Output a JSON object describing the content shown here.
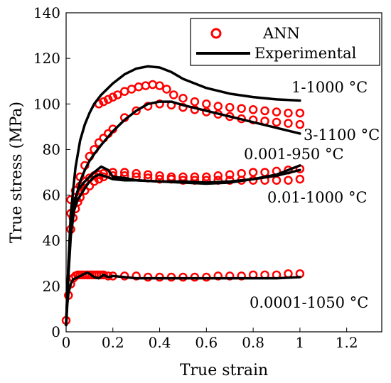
{
  "chart_data": {
    "type": "line",
    "xlabel": "True strain",
    "ylabel": "True stress (MPa)",
    "xlim": [
      0,
      1.35
    ],
    "ylim": [
      0,
      140
    ],
    "xticks": [
      0,
      0.2,
      0.4,
      0.6,
      0.8,
      1,
      1.2
    ],
    "xtick_labels": [
      "0",
      "0.2",
      "0.4",
      "0.6",
      "0.8",
      "1",
      "1.2"
    ],
    "yticks": [
      0,
      20,
      40,
      60,
      80,
      100,
      120,
      140
    ],
    "ytick_labels": [
      "0",
      "20",
      "40",
      "60",
      "80",
      "100",
      "120",
      "140"
    ],
    "legend": {
      "placement": "top-right",
      "entries": [
        {
          "label": "ANN",
          "style": "red-circle-marker"
        },
        {
          "label": "Experimental",
          "style": "black-line"
        }
      ]
    },
    "colors": {
      "ann": "#ff0000",
      "experimental": "#000000"
    },
    "series": [
      {
        "label": "1-1000 °C",
        "experimental": {
          "x": [
            0,
            0.01,
            0.02,
            0.04,
            0.06,
            0.08,
            0.1,
            0.12,
            0.15,
            0.2,
            0.25,
            0.3,
            0.35,
            0.4,
            0.45,
            0.5,
            0.6,
            0.7,
            0.8,
            0.9,
            1.0
          ],
          "y": [
            3,
            30,
            52,
            72,
            84,
            91,
            96,
            100,
            104,
            109,
            113,
            115.5,
            116.5,
            116,
            114,
            111,
            107,
            104.5,
            103,
            102,
            101.5
          ]
        },
        "ann": {
          "x": [
            0.14,
            0.16,
            0.18,
            0.2,
            0.22,
            0.25,
            0.28,
            0.31,
            0.34,
            0.37,
            0.4,
            0.43,
            0.46,
            0.5,
            0.55,
            0.6,
            0.65,
            0.7,
            0.75,
            0.8,
            0.85,
            0.9,
            0.95,
            1.0
          ],
          "y": [
            100,
            101,
            102,
            103,
            104,
            105.5,
            106.5,
            107.5,
            108,
            108.5,
            108,
            106.5,
            104,
            102.5,
            101,
            100,
            99,
            98.5,
            98,
            97.5,
            97,
            96.5,
            96,
            96
          ]
        }
      },
      {
        "label": "3-1100 °C",
        "experimental": {
          "x": [
            0,
            0.01,
            0.02,
            0.04,
            0.06,
            0.08,
            0.1,
            0.12,
            0.15,
            0.2,
            0.25,
            0.3,
            0.35,
            0.4,
            0.45,
            0.5,
            0.6,
            0.7,
            0.8,
            0.9,
            1.0
          ],
          "y": [
            3,
            25,
            42,
            58,
            66,
            71,
            75,
            78,
            82,
            88,
            93,
            97,
            100,
            101,
            101,
            99.5,
            97,
            94.5,
            92,
            89.5,
            87
          ]
        },
        "ann": {
          "x": [
            0.02,
            0.04,
            0.06,
            0.08,
            0.1,
            0.12,
            0.14,
            0.16,
            0.18,
            0.2,
            0.25,
            0.3,
            0.35,
            0.4,
            0.45,
            0.5,
            0.55,
            0.6,
            0.65,
            0.7,
            0.75,
            0.8,
            0.85,
            0.9,
            0.95,
            1.0
          ],
          "y": [
            52,
            62,
            68,
            73,
            77,
            80,
            83,
            85,
            87,
            89,
            94,
            97,
            99,
            100,
            99.5,
            98.5,
            97.5,
            96.5,
            95.5,
            94.5,
            93.5,
            93,
            92.5,
            92,
            91.5,
            91
          ]
        }
      },
      {
        "label": "0.001-950 °C",
        "experimental": {
          "x": [
            0,
            0.01,
            0.02,
            0.03,
            0.05,
            0.08,
            0.1,
            0.12,
            0.15,
            0.18,
            0.2,
            0.25,
            0.3,
            0.4,
            0.5,
            0.6,
            0.7,
            0.8,
            0.9,
            0.95,
            1.0
          ],
          "y": [
            3,
            30,
            48,
            56,
            62,
            66,
            68,
            70,
            72.5,
            71,
            68,
            67.5,
            66.5,
            66,
            65.5,
            65,
            65.5,
            67,
            69,
            71,
            73
          ]
        },
        "ann": {
          "x": [
            0.02,
            0.04,
            0.06,
            0.08,
            0.1,
            0.12,
            0.14,
            0.16,
            0.2,
            0.25,
            0.3,
            0.35,
            0.4,
            0.45,
            0.5,
            0.55,
            0.6,
            0.65,
            0.7,
            0.75,
            0.8,
            0.85,
            0.9,
            0.95,
            1.0
          ],
          "y": [
            58,
            62,
            64,
            66,
            67.5,
            68.5,
            69,
            69.5,
            70,
            70,
            69.5,
            69,
            68.5,
            68,
            68,
            68,
            68,
            68.5,
            69,
            69.5,
            70,
            70,
            70.5,
            71,
            71.5
          ]
        }
      },
      {
        "label": "0.01-1000 °C",
        "experimental": {
          "x": [
            0,
            0.01,
            0.02,
            0.03,
            0.05,
            0.08,
            0.1,
            0.12,
            0.14,
            0.16,
            0.2,
            0.25,
            0.3,
            0.4,
            0.5,
            0.6,
            0.7,
            0.8,
            0.9,
            1.0
          ],
          "y": [
            3,
            28,
            45,
            52,
            58,
            63,
            66,
            68,
            69,
            68.5,
            67,
            66.5,
            66.5,
            66,
            66,
            65.5,
            66,
            67,
            68.5,
            71
          ]
        },
        "ann": {
          "x": [
            0.02,
            0.03,
            0.04,
            0.05,
            0.06,
            0.08,
            0.1,
            0.12,
            0.14,
            0.16,
            0.2,
            0.25,
            0.3,
            0.35,
            0.4,
            0.45,
            0.5,
            0.55,
            0.6,
            0.65,
            0.7,
            0.75,
            0.8,
            0.85,
            0.9,
            0.95,
            1.0
          ],
          "y": [
            45,
            50,
            54,
            57,
            59,
            62,
            64,
            66,
            67,
            68,
            68.5,
            68.5,
            68,
            67.5,
            67,
            67,
            66.5,
            66.5,
            66.5,
            66.5,
            66.5,
            66.5,
            66.5,
            66.5,
            66.5,
            66.5,
            67
          ]
        }
      },
      {
        "label": "0.0001-1050 °C",
        "experimental": {
          "x": [
            0,
            0.005,
            0.01,
            0.02,
            0.03,
            0.05,
            0.07,
            0.09,
            0.1,
            0.12,
            0.14,
            0.16,
            0.18,
            0.2,
            0.25,
            0.3,
            0.4,
            0.5,
            0.6,
            0.7,
            0.8,
            0.9,
            1.0
          ],
          "y": [
            3,
            12,
            17,
            21,
            23,
            24,
            25,
            26,
            25.5,
            24,
            23.5,
            25,
            24,
            24.5,
            24,
            23.5,
            23.5,
            23.5,
            23.5,
            23.5,
            23.5,
            23.5,
            24
          ]
        },
        "ann": {
          "x": [
            0,
            0.01,
            0.02,
            0.03,
            0.04,
            0.05,
            0.06,
            0.07,
            0.08,
            0.09,
            0.1,
            0.11,
            0.12,
            0.13,
            0.14,
            0.15,
            0.16,
            0.18,
            0.2,
            0.25,
            0.3,
            0.35,
            0.4,
            0.45,
            0.5,
            0.55,
            0.6,
            0.65,
            0.7,
            0.75,
            0.8,
            0.85,
            0.9,
            0.95,
            1.0
          ],
          "y": [
            5,
            16,
            21,
            23.5,
            24.5,
            25,
            25,
            25,
            25,
            25,
            25,
            25,
            25,
            25,
            25,
            25,
            25,
            24.5,
            24.5,
            24.5,
            24.5,
            24,
            24,
            24,
            24,
            24,
            24,
            24.5,
            24.5,
            24.5,
            25,
            25,
            25,
            25.5,
            25.5
          ]
        }
      }
    ]
  }
}
